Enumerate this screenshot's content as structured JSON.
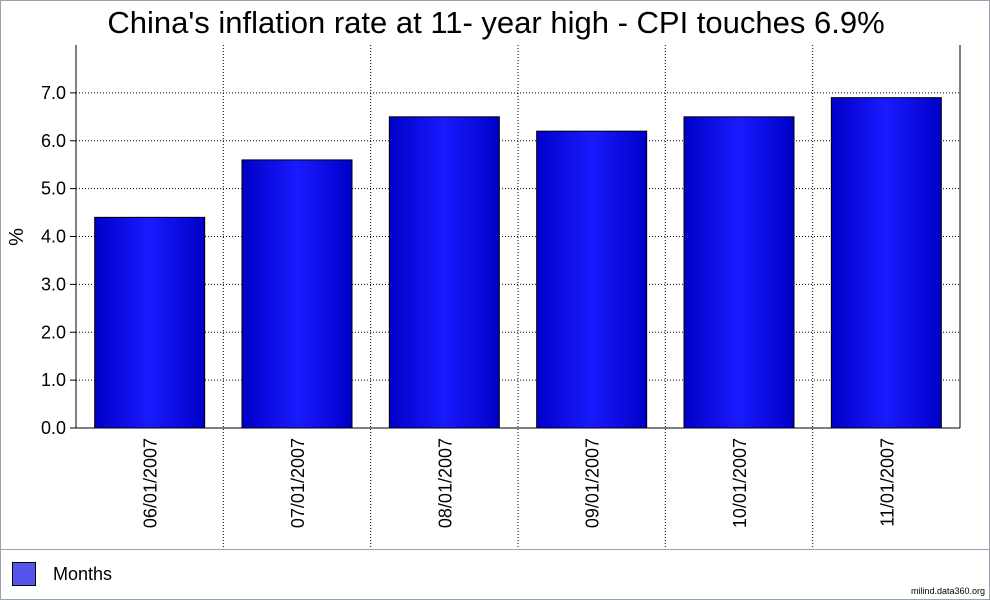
{
  "chart_data": {
    "type": "bar",
    "title": "China's inflation rate at 11- year high - CPI touches 6.9%",
    "ylabel": "%",
    "xlabel": "",
    "categories": [
      "06/01/2007",
      "07/01/2007",
      "08/01/2007",
      "09/01/2007",
      "10/01/2007",
      "11/01/2007"
    ],
    "series": [
      {
        "name": "Months",
        "values": [
          4.4,
          5.6,
          6.5,
          6.2,
          6.5,
          6.9
        ]
      }
    ],
    "ylim": [
      0,
      8
    ],
    "yticks": [
      "0.0",
      "1.0",
      "2.0",
      "3.0",
      "4.0",
      "5.0",
      "6.0",
      "7.0"
    ],
    "grid": true,
    "legend_position": "bottom-left"
  },
  "colors": {
    "bar_edge": "#0000c8",
    "bar_center": "#1a1aff",
    "legend_swatch": "#5555ee",
    "grid": "#000000"
  },
  "credit": "milind.data360.org"
}
